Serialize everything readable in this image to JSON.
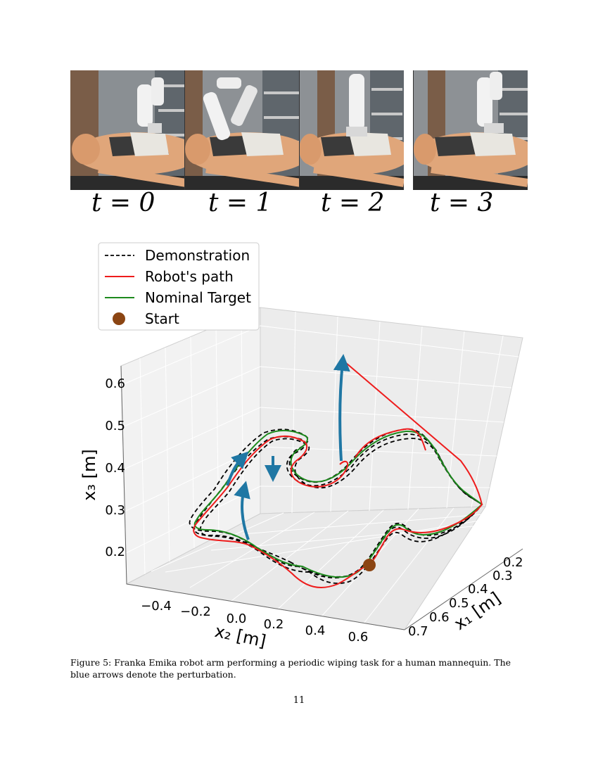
{
  "photo_strip": {
    "frames": [
      {
        "label": "t = 0"
      },
      {
        "label": "t = 1"
      },
      {
        "label": "t = 2"
      },
      {
        "label": "t = 3"
      }
    ]
  },
  "chart_data": {
    "type": "line",
    "projection": "3d",
    "legend": {
      "placement": "top-left",
      "entries": [
        {
          "label": "Demonstration",
          "style": "dashed",
          "color": "#000000"
        },
        {
          "label": "Robot's path",
          "style": "solid",
          "color": "#ee1c1c"
        },
        {
          "label": "Nominal Target",
          "style": "solid",
          "color": "#1d8a1d"
        },
        {
          "label": "Start",
          "style": "marker",
          "color": "#8b4513"
        }
      ]
    },
    "axes": {
      "x1": {
        "label": "x₁ [m]",
        "ticks": [
          "0.2",
          "0.3",
          "0.4",
          "0.5",
          "0.6",
          "0.7"
        ]
      },
      "x2": {
        "label": "x₂ [m]",
        "ticks": [
          "−0.4",
          "−0.2",
          "0.0",
          "0.2",
          "0.4",
          "0.6"
        ]
      },
      "x3": {
        "label": "x₃ [m]",
        "ticks": [
          "0.2",
          "0.3",
          "0.4",
          "0.5",
          "0.6"
        ]
      }
    },
    "grid": true,
    "perturbation_arrow_color": "#1f77a4"
  },
  "caption": "Figure 5: Franka Emika robot arm performing a periodic wiping task for a human mannequin. The blue arrows denote the perturbation.",
  "page_number": "11"
}
